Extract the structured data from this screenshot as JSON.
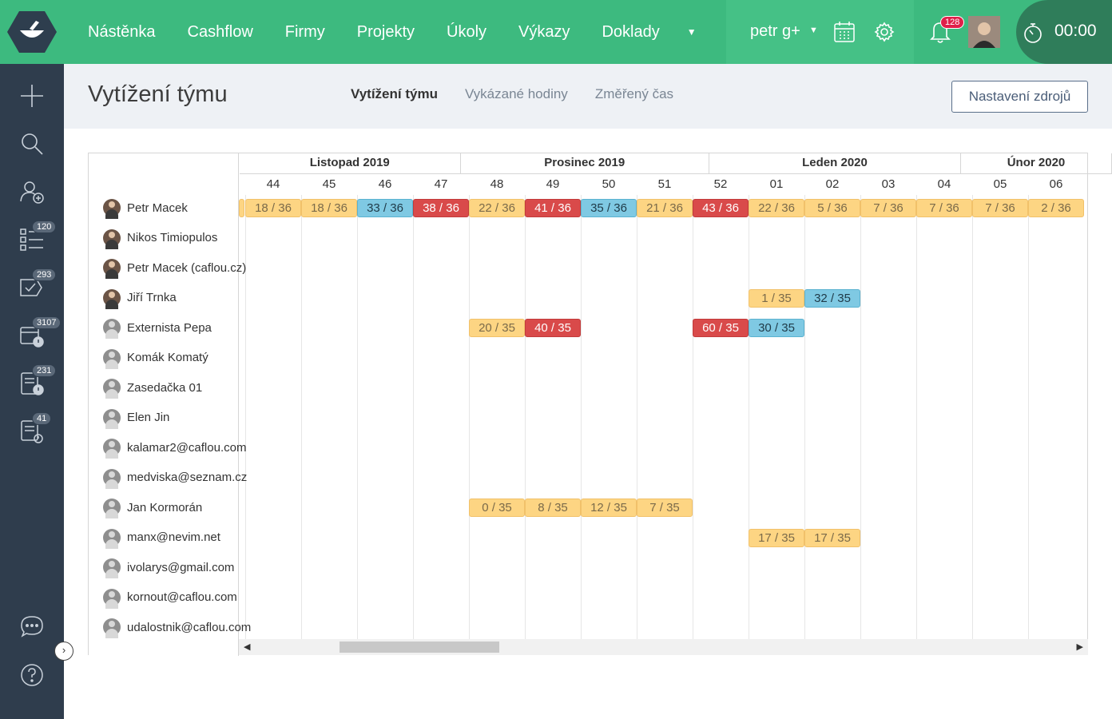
{
  "topbar": {
    "nav": [
      "Nástěnka",
      "Cashflow",
      "Firmy",
      "Projekty",
      "Úkoly",
      "Výkazy",
      "Doklady"
    ],
    "user": "petr g+",
    "notifications": "128",
    "timer": "00:00",
    "icons": [
      "logo-bowl-icon",
      "calendar-icon",
      "gear-icon",
      "bell-icon",
      "stopwatch-icon"
    ]
  },
  "sidebar": {
    "icons": [
      "plus-icon",
      "search-icon",
      "add-user-icon",
      "tasks-icon",
      "check-comment-icon",
      "invoice-alert-icon",
      "document-alert-icon",
      "document-clock-icon",
      "chat-icon",
      "help-icon"
    ],
    "badges": {
      "tasks": "120",
      "check": "293",
      "invoice": "3107",
      "document": "231",
      "clock": "41"
    }
  },
  "header": {
    "title": "Vytížení týmu",
    "tabs": [
      "Vytížení týmu",
      "Vykázané hodiny",
      "Změřený čas"
    ],
    "settings_button": "Nastavení zdrojů"
  },
  "months": [
    "Listopad 2019",
    "Prosinec 2019",
    "Leden 2020",
    "Únor 2020"
  ],
  "weeks": [
    "44",
    "45",
    "46",
    "47",
    "48",
    "49",
    "50",
    "51",
    "52",
    "01",
    "02",
    "03",
    "04",
    "05",
    "06"
  ],
  "people": [
    {
      "name": "Petr Macek",
      "photo": true
    },
    {
      "name": "Nikos Timiopulos",
      "photo": true
    },
    {
      "name": "Petr Macek (caflou.cz)",
      "photo": true
    },
    {
      "name": "Jiří Trnka",
      "photo": true
    },
    {
      "name": "Externista Pepa",
      "photo": false
    },
    {
      "name": "Komák Komatý",
      "photo": false
    },
    {
      "name": "Zasedačka 01",
      "photo": false
    },
    {
      "name": "Elen Jin",
      "photo": false
    },
    {
      "name": "kalamar2@caflou.com",
      "photo": false
    },
    {
      "name": "medviska@seznam.cz",
      "photo": false
    },
    {
      "name": "Jan Kormorán",
      "photo": false
    },
    {
      "name": "manx@nevim.net",
      "photo": false
    },
    {
      "name": "ivolarys@gmail.com",
      "photo": false
    },
    {
      "name": "kornout@caflou.com",
      "photo": false
    },
    {
      "name": "udalostnik@caflou.com",
      "photo": false
    }
  ],
  "workload": [
    {
      "row": 0,
      "week": 0,
      "text": "18 / 36",
      "status": "yellow"
    },
    {
      "row": 0,
      "week": 1,
      "text": "18 / 36",
      "status": "yellow"
    },
    {
      "row": 0,
      "week": 2,
      "text": "33 / 36",
      "status": "blue"
    },
    {
      "row": 0,
      "week": 3,
      "text": "38 / 36",
      "status": "red"
    },
    {
      "row": 0,
      "week": 4,
      "text": "22 / 36",
      "status": "yellow"
    },
    {
      "row": 0,
      "week": 5,
      "text": "41 / 36",
      "status": "red"
    },
    {
      "row": 0,
      "week": 6,
      "text": "35 / 36",
      "status": "blue"
    },
    {
      "row": 0,
      "week": 7,
      "text": "21 / 36",
      "status": "yellow"
    },
    {
      "row": 0,
      "week": 8,
      "text": "43 / 36",
      "status": "red"
    },
    {
      "row": 0,
      "week": 9,
      "text": "22 / 36",
      "status": "yellow"
    },
    {
      "row": 0,
      "week": 10,
      "text": "5 / 36",
      "status": "yellow"
    },
    {
      "row": 0,
      "week": 11,
      "text": "7 / 36",
      "status": "yellow"
    },
    {
      "row": 0,
      "week": 12,
      "text": "7 / 36",
      "status": "yellow"
    },
    {
      "row": 0,
      "week": 13,
      "text": "7 / 36",
      "status": "yellow"
    },
    {
      "row": 0,
      "week": 14,
      "text": "2 / 36",
      "status": "yellow"
    },
    {
      "row": 3,
      "week": 9,
      "text": "1 / 35",
      "status": "yellow"
    },
    {
      "row": 3,
      "week": 10,
      "text": "32 / 35",
      "status": "blue"
    },
    {
      "row": 4,
      "week": 4,
      "text": "20 / 35",
      "status": "yellow"
    },
    {
      "row": 4,
      "week": 5,
      "text": "40 / 35",
      "status": "red"
    },
    {
      "row": 4,
      "week": 8,
      "text": "60 / 35",
      "status": "red"
    },
    {
      "row": 4,
      "week": 9,
      "text": "30 / 35",
      "status": "blue"
    },
    {
      "row": 10,
      "week": 4,
      "text": "0 / 35",
      "status": "yellow"
    },
    {
      "row": 10,
      "week": 5,
      "text": "8 / 35",
      "status": "yellow"
    },
    {
      "row": 10,
      "week": 6,
      "text": "12 / 35",
      "status": "yellow"
    },
    {
      "row": 10,
      "week": 7,
      "text": "7 / 35",
      "status": "yellow"
    },
    {
      "row": 11,
      "week": 9,
      "text": "17 / 35",
      "status": "yellow"
    },
    {
      "row": 11,
      "week": 10,
      "text": "17 / 35",
      "status": "yellow"
    }
  ]
}
